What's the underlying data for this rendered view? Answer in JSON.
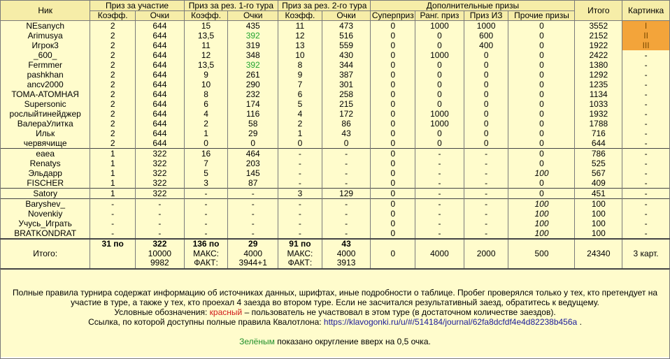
{
  "headers": {
    "nick": "Ник",
    "participation": "Приз за участие",
    "round1": "Приз за рез. 1-го тура",
    "round2": "Приз за рез. 2-го тура",
    "extra": "Дополнительные призы",
    "total": "Итого",
    "picture": "Картинка",
    "coef": "Коэфф.",
    "points": "Очки",
    "superprize": "Суперприз",
    "rank_prize": "Ранг. приз",
    "iz_prize": "Приз ИЗ",
    "other_prizes": "Прочие призы"
  },
  "rows": [
    {
      "nick": "NEsanych",
      "pc": "2",
      "pp": "644",
      "r1c": "15",
      "r1p": "435",
      "r2c": "11",
      "r2p": "473",
      "sp": "0",
      "rp": "1000",
      "iz": "1000",
      "other": "0",
      "total": "3552",
      "pic": "I"
    },
    {
      "nick": "Arimusya",
      "pc": "2",
      "pp": "644",
      "r1c": "13,5",
      "r1p": "392",
      "r2c": "12",
      "r2p": "516",
      "sp": "0",
      "rp": "0",
      "iz": "600",
      "other": "0",
      "total": "2152",
      "pic": "II"
    },
    {
      "nick": "Игрок3",
      "pc": "2",
      "pp": "644",
      "r1c": "11",
      "r1p": "319",
      "r2c": "13",
      "r2p": "559",
      "sp": "0",
      "rp": "0",
      "iz": "400",
      "other": "0",
      "total": "1922",
      "pic": "III"
    },
    {
      "nick": "_600_",
      "pc": "2",
      "pp": "644",
      "r1c": "12",
      "r1p": "348",
      "r2c": "10",
      "r2p": "430",
      "sp": "0",
      "rp": "1000",
      "iz": "0",
      "other": "0",
      "total": "2422",
      "pic": "-"
    },
    {
      "nick": "Fermmer",
      "pc": "2",
      "pp": "644",
      "r1c": "13,5",
      "r1p": "392",
      "r2c": "8",
      "r2p": "344",
      "sp": "0",
      "rp": "0",
      "iz": "0",
      "other": "0",
      "total": "1380",
      "pic": "-"
    },
    {
      "nick": "pashkhan",
      "pc": "2",
      "pp": "644",
      "r1c": "9",
      "r1p": "261",
      "r2c": "9",
      "r2p": "387",
      "sp": "0",
      "rp": "0",
      "iz": "0",
      "other": "0",
      "total": "1292",
      "pic": "-"
    },
    {
      "nick": "ancv2000",
      "pc": "2",
      "pp": "644",
      "r1c": "10",
      "r1p": "290",
      "r2c": "7",
      "r2p": "301",
      "sp": "0",
      "rp": "0",
      "iz": "0",
      "other": "0",
      "total": "1235",
      "pic": "-"
    },
    {
      "nick": "ТОМА-АТОМНАЯ",
      "pc": "2",
      "pp": "644",
      "r1c": "8",
      "r1p": "232",
      "r2c": "6",
      "r2p": "258",
      "sp": "0",
      "rp": "0",
      "iz": "0",
      "other": "0",
      "total": "1134",
      "pic": "-"
    },
    {
      "nick": "Supersonic",
      "pc": "2",
      "pp": "644",
      "r1c": "6",
      "r1p": "174",
      "r2c": "5",
      "r2p": "215",
      "sp": "0",
      "rp": "0",
      "iz": "0",
      "other": "0",
      "total": "1033",
      "pic": "-"
    },
    {
      "nick": "рослыйтинейджер",
      "pc": "2",
      "pp": "644",
      "r1c": "4",
      "r1p": "116",
      "r2c": "4",
      "r2p": "172",
      "sp": "0",
      "rp": "1000",
      "iz": "0",
      "other": "0",
      "total": "1932",
      "pic": "-"
    },
    {
      "nick": "ВалераУлитка",
      "pc": "2",
      "pp": "644",
      "r1c": "2",
      "r1p": "58",
      "r2c": "2",
      "r2p": "86",
      "sp": "0",
      "rp": "1000",
      "iz": "0",
      "other": "0",
      "total": "1788",
      "pic": "-"
    },
    {
      "nick": "Ильк",
      "pc": "2",
      "pp": "644",
      "r1c": "1",
      "r1p": "29",
      "r2c": "1",
      "r2p": "43",
      "sp": "0",
      "rp": "0",
      "iz": "0",
      "other": "0",
      "total": "716",
      "pic": "-"
    },
    {
      "nick": "червячище",
      "pc": "2",
      "pp": "644",
      "r1c": "0",
      "r1p": "0",
      "r2c": "0",
      "r2p": "0",
      "sp": "0",
      "rp": "0",
      "iz": "0",
      "other": "0",
      "total": "644",
      "pic": "-"
    },
    {
      "nick": "eaea",
      "pc": "1",
      "pp": "322",
      "r1c": "16",
      "r1p": "464",
      "r2c": "-",
      "r2p": "-",
      "sp": "0",
      "rp": "-",
      "iz": "-",
      "other": "0",
      "total": "786",
      "pic": "-"
    },
    {
      "nick": "Renatys",
      "pc": "1",
      "pp": "322",
      "r1c": "7",
      "r1p": "203",
      "r2c": "-",
      "r2p": "-",
      "sp": "0",
      "rp": "-",
      "iz": "-",
      "other": "0",
      "total": "525",
      "pic": "-"
    },
    {
      "nick": "Эльдарр",
      "pc": "1",
      "pp": "322",
      "r1c": "5",
      "r1p": "145",
      "r2c": "-",
      "r2p": "-",
      "sp": "0",
      "rp": "-",
      "iz": "-",
      "other": "100",
      "total": "567",
      "pic": "-"
    },
    {
      "nick": "FISCHER",
      "pc": "1",
      "pp": "322",
      "r1c": "3",
      "r1p": "87",
      "r2c": "-",
      "r2p": "-",
      "sp": "0",
      "rp": "-",
      "iz": "-",
      "other": "0",
      "total": "409",
      "pic": "-"
    },
    {
      "nick": "Satory",
      "pc": "1",
      "pp": "322",
      "r1c": "-",
      "r1p": "-",
      "r2c": "3",
      "r2p": "129",
      "sp": "0",
      "rp": "-",
      "iz": "-",
      "other": "0",
      "total": "451",
      "pic": "-"
    },
    {
      "nick": "Baryshev_",
      "pc": "-",
      "pp": "-",
      "r1c": "-",
      "r1p": "-",
      "r2c": "-",
      "r2p": "-",
      "sp": "0",
      "rp": "-",
      "iz": "-",
      "other": "100",
      "total": "100",
      "pic": "-"
    },
    {
      "nick": "Novenkiy",
      "pc": "-",
      "pp": "-",
      "r1c": "-",
      "r1p": "-",
      "r2c": "-",
      "r2p": "-",
      "sp": "0",
      "rp": "-",
      "iz": "-",
      "other": "100",
      "total": "100",
      "pic": "-"
    },
    {
      "nick": "Учусь_Играть",
      "pc": "-",
      "pp": "-",
      "r1c": "-",
      "r1p": "-",
      "r2c": "-",
      "r2p": "-",
      "sp": "0",
      "rp": "-",
      "iz": "-",
      "other": "100",
      "total": "100",
      "pic": "-"
    },
    {
      "nick": "BRATKONDRAT",
      "pc": "-",
      "pp": "-",
      "r1c": "-",
      "r1p": "-",
      "r2c": "-",
      "r2p": "-",
      "sp": "0",
      "rp": "-",
      "iz": "-",
      "other": "100",
      "total": "100",
      "pic": "-"
    }
  ],
  "highlight": {
    "green_values": [
      "392"
    ],
    "medal_color": "#f3a43a",
    "green_color": "#22a52f",
    "red_color": "#d01a1a"
  },
  "totals": {
    "label": "Итого:",
    "pc": "31 по",
    "pp": "322",
    "r1c": "136 по",
    "r1p": "29",
    "r2c": "91 по",
    "r2p": "43",
    "max_label": "МАКС:",
    "fact_label": "ФАКТ:",
    "pp_max": "10000",
    "pp_fact": "9982",
    "r1_max": "4000",
    "r1_fact": "3944+1",
    "r2_max": "4000",
    "r2_fact": "3913",
    "sp": "0",
    "rp": "4000",
    "iz": "2000",
    "other": "500",
    "total": "24340",
    "pic": "3 карт."
  },
  "notes": {
    "line1": "Полные правила турнира содержат информацию об источниках данных, шрифтах, иные подробности о таблице. Пробег проверялся только у тех, кто претендует на участие в туре, а также у тех, кто проехал 4 заезда во втором туре. Если не засчитался результативный заезд, обратитесь к ведущему.",
    "legend_prefix": "Условные обозначения:",
    "legend_red": "красный",
    "legend_suffix": "– пользователь не участвовал в этом туре (в достаточном количестве заездов).",
    "link_prefix": "Ссылка, по которой доступны полные правила Квалотлона:",
    "link_url": "https://klavogonki.ru/u/#/514184/journal/62fa8dcfdf4e4d82238b456a",
    "link_suffix": ".",
    "green_word": "Зелёным",
    "green_suffix": "показано округление вверх на 0,5 очка."
  }
}
